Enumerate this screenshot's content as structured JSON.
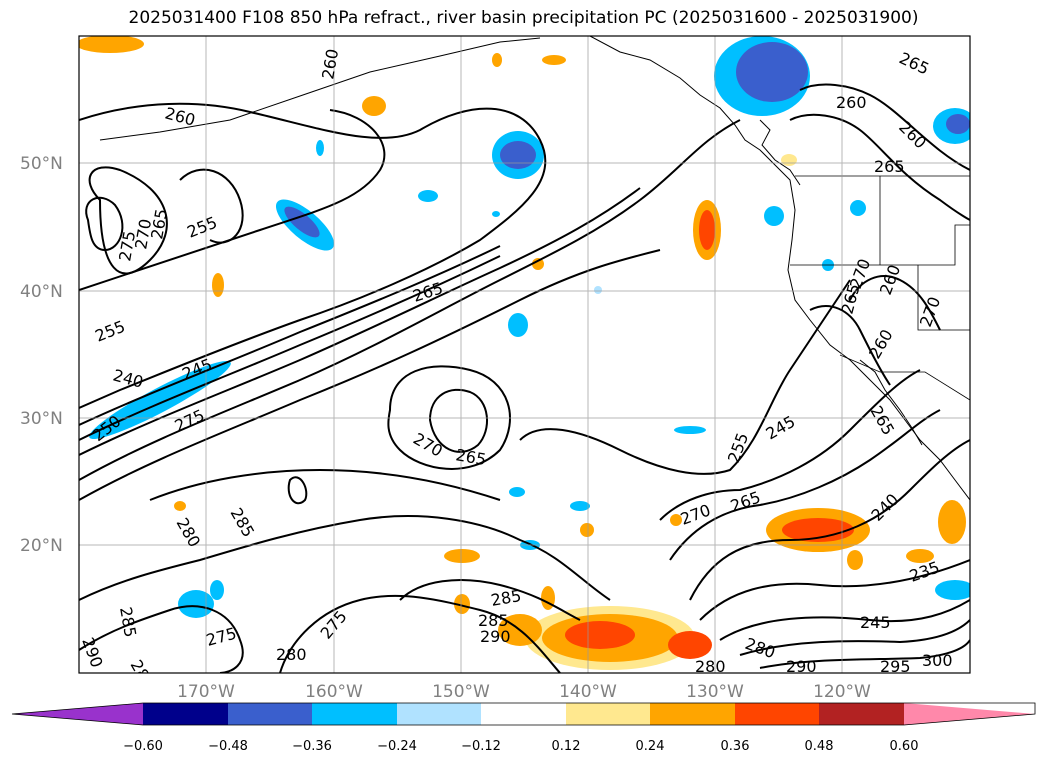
{
  "chart_data": {
    "type": "contour_map",
    "title": "2025031400 F108 850 hPa refract., river basin precipitation PC (2025031600 - 2025031900)",
    "lon_range": [
      -180,
      -110
    ],
    "lat_range": [
      10,
      60
    ],
    "lat_labels": [
      "50°N",
      "40°N",
      "30°N",
      "20°N"
    ],
    "lon_labels": [
      "170°W",
      "160°W",
      "150°W",
      "140°W",
      "130°W",
      "120°W"
    ],
    "grid": true,
    "contour_labels": [
      "260",
      "260",
      "255",
      "265",
      "270",
      "275",
      "265",
      "255",
      "260",
      "265",
      "240",
      "245",
      "250",
      "275",
      "265",
      "270",
      "265",
      "270",
      "245",
      "255",
      "270",
      "265",
      "240",
      "235",
      "245",
      "280",
      "285",
      "280",
      "285",
      "290",
      "285",
      "290",
      "275",
      "280",
      "275",
      "280",
      "290",
      "295",
      "300",
      "280",
      "285",
      "260",
      "265",
      "260",
      "270",
      "265",
      "260"
    ],
    "colorbar": {
      "ticks": [
        "−0.60",
        "−0.48",
        "−0.36",
        "−0.24",
        "−0.12",
        "0.12",
        "0.24",
        "0.36",
        "0.48",
        "0.60"
      ],
      "colors": [
        "#9932cc",
        "#00008b",
        "#3a5fcd",
        "#00bfff",
        "#b0e2ff",
        "#ffffff",
        "#ffe88f",
        "#ffa500",
        "#ff4500",
        "#b22222",
        "#ff88aa"
      ],
      "extend": "both"
    }
  }
}
